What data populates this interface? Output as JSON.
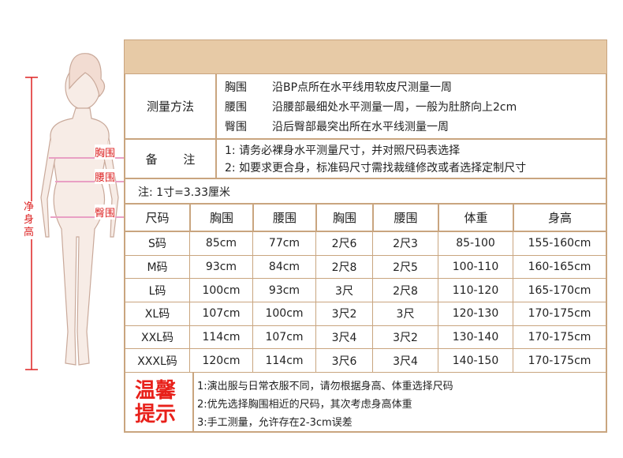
{
  "figure": {
    "height_label": "净身高",
    "labels": [
      "胸围",
      "腰围",
      "臀围"
    ]
  },
  "measure": {
    "label": "测量方法",
    "items": [
      {
        "name": "胸围",
        "desc": "沿BP点所在水平线用软皮尺测量一周"
      },
      {
        "name": "腰围",
        "desc": "沿腰部最细处水平测量一周，一般为肚脐向上2cm"
      },
      {
        "name": "臀围",
        "desc": "沿后臀部最突出所在水平线测量一周"
      }
    ]
  },
  "notes": {
    "label": "备 注",
    "lines": [
      "1: 请务必裸身水平测量尺寸，并对照尺码表选择",
      "2: 如要求更合身，标准码尺寸需找裁缝修改或者选择定制尺寸"
    ]
  },
  "conversion": "注: 1寸=3.33厘米",
  "table": {
    "headers": [
      "尺码",
      "胸围",
      "腰围",
      "胸围",
      "腰围",
      "体重",
      "身高"
    ],
    "rows": [
      [
        "S码",
        "85cm",
        "77cm",
        "2尺6",
        "2尺3",
        "85-100",
        "155-160cm"
      ],
      [
        "M码",
        "93cm",
        "84cm",
        "2尺8",
        "2尺5",
        "100-110",
        "160-165cm"
      ],
      [
        "L码",
        "100cm",
        "93cm",
        "3尺",
        "2尺8",
        "110-120",
        "165-170cm"
      ],
      [
        "XL码",
        "107cm",
        "100cm",
        "3尺2",
        "3尺",
        "120-130",
        "170-175cm"
      ],
      [
        "XXL码",
        "114cm",
        "107cm",
        "3尺4",
        "3尺2",
        "130-140",
        "170-175cm"
      ],
      [
        "XXXL码",
        "120cm",
        "114cm",
        "3尺6",
        "3尺4",
        "140-150",
        "170-175cm"
      ]
    ]
  },
  "tips": {
    "title_lines": [
      "温馨",
      "提示"
    ],
    "lines": [
      "1:演出服与日常衣服不同，请勿根据身高、体重选择尺码",
      "2:优先选择胸围相近的尺码，其次考虑身高体重",
      "3:手工测量，允许存在2-3cm误差"
    ]
  }
}
